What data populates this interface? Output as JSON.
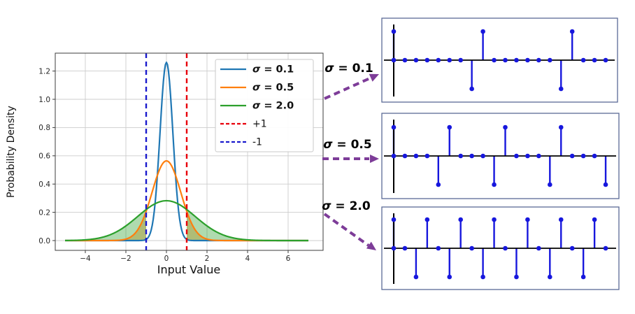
{
  "chart_data": [
    {
      "id": "pdf",
      "type": "line",
      "xlabel": "Input Value",
      "ylabel": "Probability Density",
      "xlim": [
        -5.5,
        7.7
      ],
      "ylim": [
        0,
        1.33
      ],
      "xticks": [
        -4,
        -2,
        0,
        2,
        4,
        6
      ],
      "yticks": [
        0.0,
        0.2,
        0.4,
        0.6,
        0.8,
        1.0,
        1.2
      ],
      "grid": true,
      "legend_position": "upper right",
      "series": [
        {
          "label": "σ = 0.1",
          "variance": 0.1,
          "peak": 1.26,
          "color": "#1f77b4",
          "x_range": [
            -5,
            7
          ],
          "fill_tails": false
        },
        {
          "label": "σ = 0.5",
          "variance": 0.5,
          "peak": 0.56,
          "color": "#ff7f0e",
          "x_range": [
            -5,
            7
          ],
          "fill_tails": true
        },
        {
          "label": "σ = 2.0",
          "variance": 2.0,
          "peak": 0.28,
          "color": "#2ca02c",
          "x_range": [
            -5,
            7
          ],
          "fill_tails": true
        }
      ],
      "fill_tail_threshold": 1,
      "fill_opacity": 0.38,
      "vlines": [
        {
          "label": "+1",
          "x": 1,
          "color": "#e8000b"
        },
        {
          "label": "-1",
          "x": -1,
          "color": "#1a1acd"
        }
      ]
    },
    {
      "id": "stems",
      "type": "stem",
      "stem_color": "#1717dd",
      "axis_color": "#000000",
      "panels": [
        {
          "label": "σ = 0.1",
          "values": [
            1,
            0,
            0,
            0,
            0,
            0,
            0,
            -1,
            1,
            0,
            0,
            0,
            0,
            0,
            0,
            -1,
            1,
            0,
            0,
            0
          ]
        },
        {
          "label": "σ = 0.5",
          "values": [
            1,
            0,
            0,
            0,
            -1,
            1,
            0,
            0,
            0,
            -1,
            1,
            0,
            0,
            0,
            -1,
            1,
            0,
            0,
            0,
            -1
          ]
        },
        {
          "label": "σ = 2.0",
          "values": [
            1,
            0,
            -1,
            1,
            0,
            -1,
            1,
            0,
            -1,
            1,
            0,
            -1,
            1,
            0,
            -1,
            1,
            0,
            -1,
            1,
            0
          ]
        }
      ]
    }
  ],
  "annotations": [
    {
      "label": "σ = 0.1"
    },
    {
      "label": "σ = 0.5"
    },
    {
      "label": "σ = 2.0"
    }
  ],
  "arrow_color": "#7d3c98"
}
